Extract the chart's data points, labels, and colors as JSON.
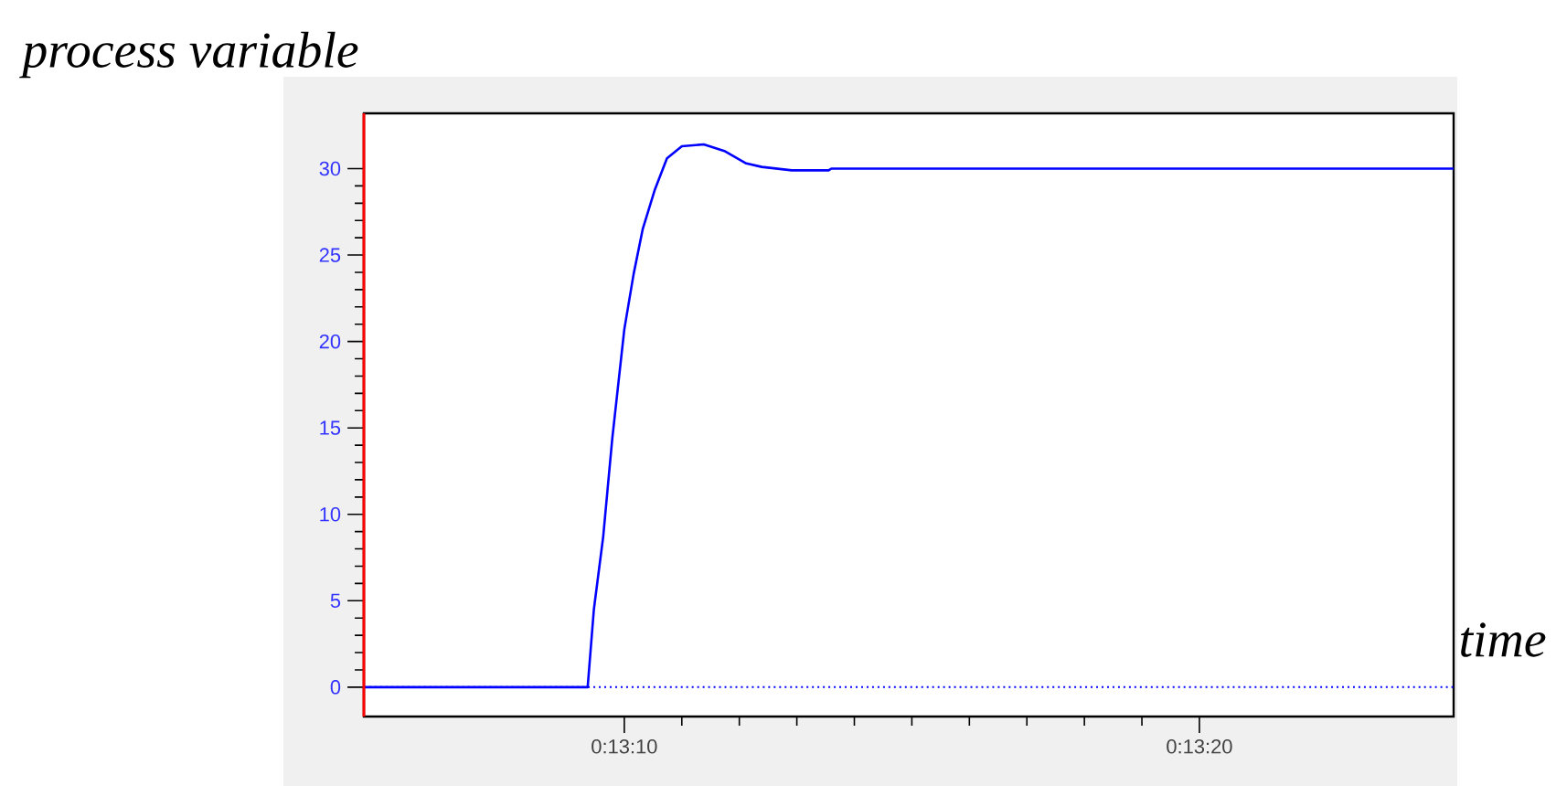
{
  "chart_data": {
    "type": "line",
    "xlabel": "time",
    "ylabel": "process variable",
    "x": [
      0.218186,
      0.219267,
      0.219297,
      0.219342,
      0.219386,
      0.219444,
      0.219489,
      0.219533,
      0.219592,
      0.21965,
      0.219722,
      0.219828,
      0.219931,
      0.220033,
      0.220108,
      0.220253,
      0.220431,
      0.220444,
      0.22345
    ],
    "series": [
      {
        "color": "#0000ff",
        "values": [
          0,
          0,
          4.5,
          8.7,
          14.4,
          20.7,
          23.9,
          26.5,
          28.8,
          30.6,
          31.3,
          31.4,
          31,
          30.3,
          30.1,
          29.9,
          29.9,
          30,
          30
        ]
      }
    ],
    "xlim": [
      0.218186,
      0.22345
    ],
    "ylim": [
      -1.7,
      33.2
    ],
    "xticks": [
      {
        "value": 0.219444,
        "label": "0:13:10"
      },
      {
        "value": 0.222222,
        "label": "0:13:20"
      }
    ],
    "yticks": [
      0,
      5,
      10,
      15,
      20,
      25,
      30
    ],
    "ref_lines": [
      {
        "axis": "y",
        "value": 0,
        "color": "#0000ff",
        "line_style": "dotted"
      }
    ],
    "grid": false,
    "marker": "none",
    "line_style": "solid"
  }
}
